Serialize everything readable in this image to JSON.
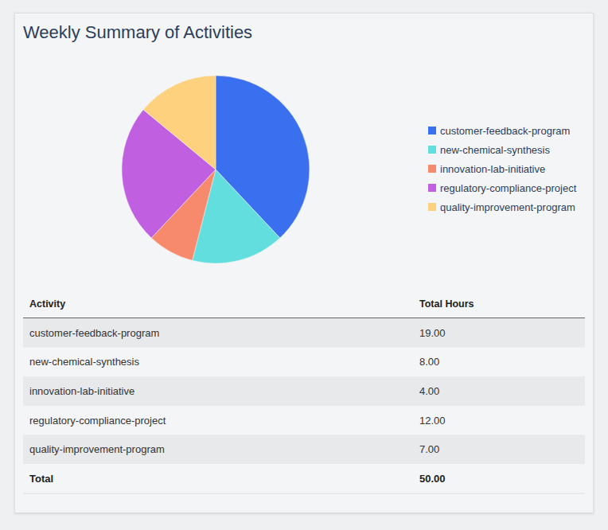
{
  "chart_data": {
    "type": "pie",
    "title": "Weekly Summary of Activities",
    "categories": [
      "customer-feedback-program",
      "new-chemical-synthesis",
      "innovation-lab-initiative",
      "regulatory-compliance-project",
      "quality-improvement-program"
    ],
    "values": [
      19,
      8,
      4,
      12,
      7
    ],
    "colors": [
      "#3a6ff0",
      "#63dede",
      "#f78a6c",
      "#c05fe0",
      "#fdd17e"
    ],
    "legend": "right"
  },
  "table": {
    "columns": [
      "Activity",
      "Total Hours"
    ],
    "rows": [
      [
        "customer-feedback-program",
        "19.00"
      ],
      [
        "new-chemical-synthesis",
        "8.00"
      ],
      [
        "innovation-lab-initiative",
        "4.00"
      ],
      [
        "regulatory-compliance-project",
        "12.00"
      ],
      [
        "quality-improvement-program",
        "7.00"
      ]
    ],
    "total": [
      "Total",
      "50.00"
    ]
  }
}
